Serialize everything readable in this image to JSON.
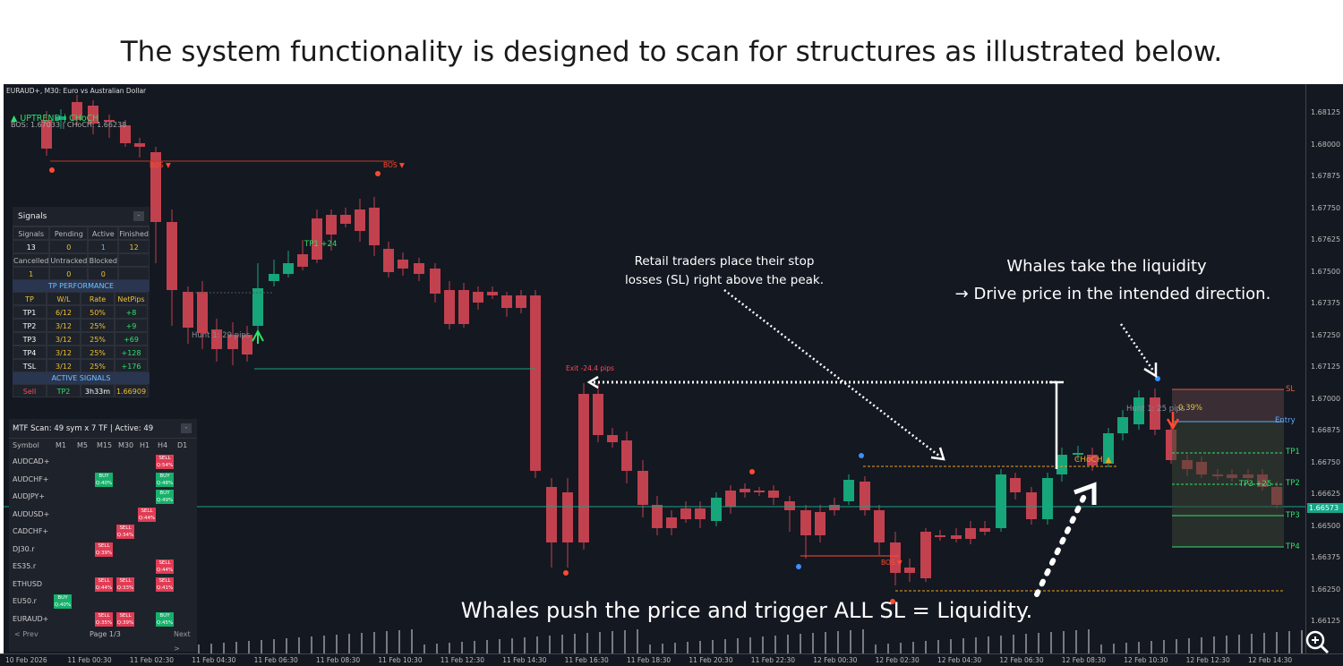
{
  "caption": "The system functionality is designed to scan for structures as illustrated below.",
  "chart": {
    "symbol_info": "EURAUD+, M30:  Euro vs Australian Dollar",
    "trend_label": "▲ UPTREND | CHoCH",
    "bos_info": "BOS: 1.67033 | CHoCH: 1.66238",
    "current_price": "1.66573",
    "y_ticks": [
      "1.68125",
      "1.68000",
      "1.67875",
      "1.67750",
      "1.67625",
      "1.67500",
      "1.67375",
      "1.67250",
      "1.67125",
      "1.67000",
      "1.66875",
      "1.66750",
      "1.66625",
      "1.66500",
      "1.66375",
      "1.66250",
      "1.66125"
    ],
    "x_ticks": [
      "10 Feb 2026",
      "11 Feb 00:30",
      "11 Feb 02:30",
      "11 Feb 04:30",
      "11 Feb 06:30",
      "11 Feb 08:30",
      "11 Feb 10:30",
      "11 Feb 12:30",
      "11 Feb 14:30",
      "11 Feb 16:30",
      "11 Feb 18:30",
      "11 Feb 20:30",
      "11 Feb 22:30",
      "12 Feb 00:30",
      "12 Feb 02:30",
      "12 Feb 04:30",
      "12 Feb 06:30",
      "12 Feb 08:30",
      "12 Feb 10:30",
      "12 Feb 12:30",
      "12 Feb 14:30"
    ],
    "labels": {
      "bos1": "BOS ▼",
      "bos2": "BOS ▼",
      "bos3": "BOS ▼",
      "tp1_hit": "TP1 +24",
      "hunt1": "Hunt 1: 29 pips",
      "exit": "Exit -24.4 pips",
      "choch": "CHoCH ▲",
      "hunt2": "Hunt 1: 25 pips",
      "pct": "0.39%",
      "tp3_hit": "TP3 +25"
    },
    "levels": [
      "SL",
      "Entry",
      "TP1",
      "TP2",
      "TP3",
      "TP4"
    ]
  },
  "annotations": {
    "retail": "Retail traders place their stop\nlosses (SL) right above the peak.",
    "whales_take_1": "Whales take the liquidity",
    "whales_take_2": "→ Drive price in the intended direction.",
    "whales_push": "Whales push the price and trigger ALL SL = Liquidity."
  },
  "signals_panel": {
    "title": "Signals",
    "minimize": "-",
    "row1_headers": [
      "Signals",
      "Pending",
      "Active",
      "Finished"
    ],
    "row1_values": [
      "13",
      "0",
      "1",
      "12"
    ],
    "row2_headers": [
      "Cancelled",
      "Untracked",
      "Blocked",
      ""
    ],
    "row2_values": [
      "1",
      "0",
      "0",
      ""
    ],
    "tp_title": "TP PERFORMANCE",
    "tp_headers": [
      "TP",
      "W/L",
      "Rate",
      "NetPips"
    ],
    "tp_rows": [
      [
        "TP1",
        "6/12",
        "50%",
        "+8"
      ],
      [
        "TP2",
        "3/12",
        "25%",
        "+9"
      ],
      [
        "TP3",
        "3/12",
        "25%",
        "+69"
      ],
      [
        "TP4",
        "3/12",
        "25%",
        "+128"
      ],
      [
        "TSL",
        "3/12",
        "25%",
        "+176"
      ]
    ],
    "active_title": "ACTIVE SIGNALS",
    "active_row": [
      "Sell",
      "TP2",
      "3h33m",
      "1.66909"
    ]
  },
  "mtf_panel": {
    "title": "MTF Scan: 49 sym x 7 TF | Active: 49",
    "minimize": "-",
    "headers": [
      "Symbol",
      "M1",
      "M5",
      "M15",
      "M30",
      "H1",
      "H4",
      "D1"
    ],
    "rows": [
      {
        "symbol": "AUDCAD+",
        "badges": [
          {
            "tf": 5,
            "type": "sell",
            "text": "SELL",
            "q": "Q:54%"
          }
        ]
      },
      {
        "symbol": "AUDCHF+",
        "badges": [
          {
            "tf": 2,
            "type": "buy",
            "text": "BUY",
            "q": "Q:40%"
          },
          {
            "tf": 5,
            "type": "buy",
            "text": "BUY",
            "q": "Q:48%"
          }
        ]
      },
      {
        "symbol": "AUDJPY+",
        "badges": [
          {
            "tf": 5,
            "type": "buy",
            "text": "BUY",
            "q": "Q:49%"
          }
        ]
      },
      {
        "symbol": "AUDUSD+",
        "badges": [
          {
            "tf": 4,
            "type": "sell",
            "text": "SELL",
            "q": "Q:44%"
          }
        ]
      },
      {
        "symbol": "CADCHF+",
        "badges": [
          {
            "tf": 3,
            "type": "sell",
            "text": "SELL",
            "q": "Q:34%"
          }
        ]
      },
      {
        "symbol": "DJ30.r",
        "badges": [
          {
            "tf": 2,
            "type": "sell",
            "text": "SELL",
            "q": "Q:39%"
          }
        ]
      },
      {
        "symbol": "ES35.r",
        "badges": [
          {
            "tf": 5,
            "type": "sell",
            "text": "SELL",
            "q": "Q:44%"
          }
        ]
      },
      {
        "symbol": "ETHUSD",
        "badges": [
          {
            "tf": 2,
            "type": "sell",
            "text": "SELL",
            "q": "Q:44%"
          },
          {
            "tf": 3,
            "type": "sell",
            "text": "SELL",
            "q": "Q:33%"
          },
          {
            "tf": 5,
            "type": "sell",
            "text": "SELL",
            "q": "Q:41%"
          }
        ]
      },
      {
        "symbol": "EU50.r",
        "badges": [
          {
            "tf": 0,
            "type": "buy",
            "text": "BUY",
            "q": "Q:40%"
          }
        ]
      },
      {
        "symbol": "EURAUD+",
        "badges": [
          {
            "tf": 2,
            "type": "sell",
            "text": "SELL",
            "q": "Q:35%"
          },
          {
            "tf": 3,
            "type": "sell",
            "text": "SELL",
            "q": "Q:39%"
          },
          {
            "tf": 5,
            "type": "buy",
            "text": "BUY",
            "q": "Q:45%"
          }
        ]
      }
    ],
    "prev": "< Prev",
    "page": "Page 1/3",
    "next": "Next >"
  },
  "colors": {
    "bull": "#17a57a",
    "bear": "#c2414f",
    "bg": "#141821",
    "accent_green": "#34d96f",
    "accent_red": "#ff4a2f"
  },
  "zoom_icon": "magnifier-zoom-icon"
}
